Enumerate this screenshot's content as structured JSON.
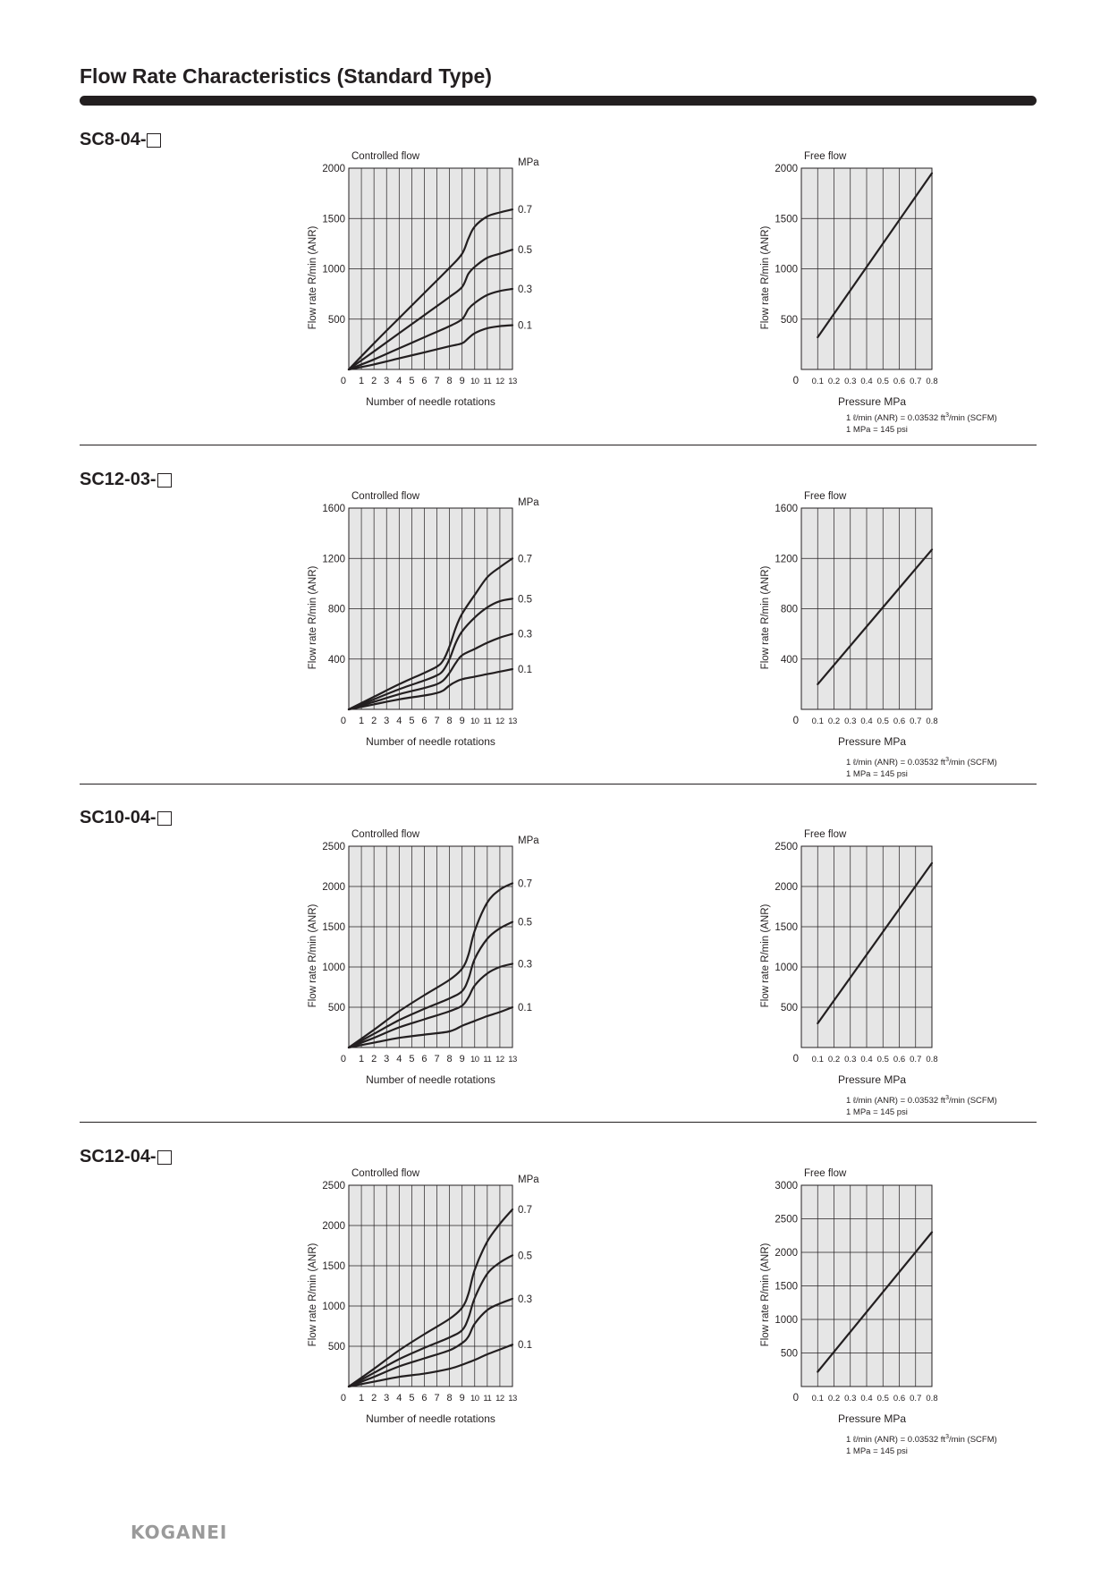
{
  "page_title": "Flow Rate Characteristics (Standard Type)",
  "logo": "KOGANEI",
  "notes": {
    "line1_pre": "1 ℓ/min (ANR) = 0.03532 ft",
    "line1_sup": "3",
    "line1_post": "/min (SCFM)",
    "line2": "1 MPa = 145 psi"
  },
  "sections": [
    {
      "model": "SC8-04-",
      "chart_data": [
        {
          "type": "line",
          "title": "Controlled flow",
          "xlabel": "Number of needle rotations",
          "ylabel": "Flow rate R/min (ANR)",
          "series_unit": "MPa",
          "xlim": [
            0,
            13
          ],
          "ylim": [
            0,
            2000
          ],
          "yticks": [
            500,
            1000,
            1500,
            2000
          ],
          "xticks": [
            0,
            1,
            2,
            3,
            4,
            5,
            6,
            7,
            8,
            9,
            10,
            11,
            12,
            13
          ],
          "grid": true,
          "series": [
            {
              "name": "0.7",
              "x": [
                0,
                2,
                4,
                6,
                8,
                9,
                9.5,
                10,
                11,
                12,
                13
              ],
              "y": [
                0,
                260,
                510,
                760,
                1010,
                1150,
                1300,
                1420,
                1520,
                1560,
                1590
              ]
            },
            {
              "name": "0.5",
              "x": [
                0,
                2,
                4,
                6,
                8,
                9,
                9.5,
                10,
                11,
                12,
                13
              ],
              "y": [
                0,
                180,
                360,
                540,
                720,
                820,
                950,
                1020,
                1110,
                1150,
                1190
              ]
            },
            {
              "name": "0.3",
              "x": [
                0,
                2,
                4,
                6,
                8,
                9,
                9.5,
                10,
                11,
                12,
                13
              ],
              "y": [
                0,
                100,
                210,
                320,
                430,
                500,
                600,
                660,
                740,
                780,
                800
              ]
            },
            {
              "name": "0.1",
              "x": [
                0,
                2,
                4,
                6,
                8,
                9,
                9.5,
                10,
                11,
                12,
                13
              ],
              "y": [
                0,
                50,
                110,
                170,
                230,
                260,
                310,
                360,
                410,
                430,
                440
              ]
            }
          ]
        },
        {
          "type": "line",
          "title": "Free flow",
          "xlabel": "Pressure MPa",
          "ylabel": "Flow rate R/min (ANR)",
          "xlim": [
            0,
            0.8
          ],
          "ylim": [
            0,
            2000
          ],
          "yticks": [
            500,
            1000,
            1500,
            2000
          ],
          "xticks": [
            "0",
            "0.1",
            "0.2",
            "0.3",
            "0.4",
            "0.5",
            "0.6",
            "0.7",
            "0.8"
          ],
          "grid": true,
          "series": [
            {
              "x": [
                0.1,
                0.8
              ],
              "y": [
                320,
                1950
              ]
            }
          ]
        }
      ]
    },
    {
      "model": "SC12-03-",
      "chart_data": [
        {
          "type": "line",
          "title": "Controlled flow",
          "xlabel": "Number of needle rotations",
          "ylabel": "Flow rate R/min (ANR)",
          "series_unit": "MPa",
          "xlim": [
            0,
            13
          ],
          "ylim": [
            0,
            1600
          ],
          "yticks": [
            400,
            800,
            1200,
            1600
          ],
          "xticks": [
            0,
            1,
            2,
            3,
            4,
            5,
            6,
            7,
            8,
            9,
            10,
            11,
            12,
            13
          ],
          "grid": true,
          "series": [
            {
              "name": "0.7",
              "x": [
                0,
                2,
                4,
                6,
                7,
                7.5,
                8,
                8.5,
                9,
                10,
                11,
                12,
                13
              ],
              "y": [
                0,
                100,
                200,
                290,
                340,
                390,
                500,
                650,
                760,
                910,
                1050,
                1130,
                1200
              ]
            },
            {
              "name": "0.5",
              "x": [
                0,
                2,
                4,
                6,
                7,
                7.5,
                8,
                8.5,
                9,
                10,
                11,
                12,
                13
              ],
              "y": [
                0,
                80,
                160,
                230,
                270,
                310,
                400,
                530,
                620,
                730,
                810,
                860,
                880
              ]
            },
            {
              "name": "0.3",
              "x": [
                0,
                2,
                4,
                6,
                7,
                7.5,
                8,
                8.5,
                9,
                10,
                11,
                12,
                13
              ],
              "y": [
                0,
                60,
                120,
                170,
                200,
                230,
                290,
                370,
                430,
                480,
                530,
                570,
                600
              ]
            },
            {
              "name": "0.1",
              "x": [
                0,
                2,
                4,
                6,
                7,
                7.5,
                8,
                8.5,
                9,
                10,
                11,
                12,
                13
              ],
              "y": [
                0,
                40,
                80,
                110,
                130,
                150,
                190,
                220,
                240,
                260,
                280,
                300,
                320
              ]
            }
          ]
        },
        {
          "type": "line",
          "title": "Free flow",
          "xlabel": "Pressure MPa",
          "ylabel": "Flow rate R/min (ANR)",
          "xlim": [
            0,
            0.8
          ],
          "ylim": [
            0,
            1600
          ],
          "yticks": [
            400,
            800,
            1200,
            1600
          ],
          "xticks": [
            "0",
            "0.1",
            "0.2",
            "0.3",
            "0.4",
            "0.5",
            "0.6",
            "0.7",
            "0.8"
          ],
          "grid": true,
          "series": [
            {
              "x": [
                0.1,
                0.8
              ],
              "y": [
                200,
                1270
              ]
            }
          ]
        }
      ]
    },
    {
      "model": "SC10-04-",
      "chart_data": [
        {
          "type": "line",
          "title": "Controlled flow",
          "xlabel": "Number of needle rotations",
          "ylabel": "Flow rate R/min (ANR)",
          "series_unit": "MPa",
          "xlim": [
            0,
            13
          ],
          "ylim": [
            0,
            2500
          ],
          "yticks": [
            500,
            1000,
            1500,
            2000,
            2500
          ],
          "xticks": [
            0,
            1,
            2,
            3,
            4,
            5,
            6,
            7,
            8,
            9,
            10,
            11,
            12,
            13
          ],
          "grid": true,
          "series": [
            {
              "name": "0.7",
              "x": [
                0,
                2,
                4,
                6,
                8,
                9,
                9.5,
                10,
                11,
                12,
                13
              ],
              "y": [
                0,
                220,
                450,
                650,
                840,
                980,
                1150,
                1450,
                1800,
                1960,
                2040
              ]
            },
            {
              "name": "0.5",
              "x": [
                0,
                2,
                4,
                6,
                8,
                9,
                9.5,
                10,
                11,
                12,
                13
              ],
              "y": [
                0,
                170,
                340,
                480,
                610,
                700,
                850,
                1100,
                1350,
                1480,
                1560
              ]
            },
            {
              "name": "0.3",
              "x": [
                0,
                2,
                4,
                6,
                8,
                9,
                9.5,
                10,
                11,
                12,
                13
              ],
              "y": [
                0,
                120,
                250,
                350,
                450,
                520,
                620,
                770,
                920,
                1000,
                1040
              ]
            },
            {
              "name": "0.1",
              "x": [
                0,
                2,
                4,
                6,
                8,
                9,
                9.5,
                10,
                11,
                12,
                13
              ],
              "y": [
                0,
                60,
                120,
                160,
                200,
                270,
                300,
                330,
                390,
                440,
                500
              ]
            }
          ]
        },
        {
          "type": "line",
          "title": "Free flow",
          "xlabel": "Pressure MPa",
          "ylabel": "Flow rate R/min (ANR)",
          "xlim": [
            0,
            0.8
          ],
          "ylim": [
            0,
            2500
          ],
          "yticks": [
            500,
            1000,
            1500,
            2000,
            2500
          ],
          "xticks": [
            "0",
            "0.1",
            "0.2",
            "0.3",
            "0.4",
            "0.5",
            "0.6",
            "0.7",
            "0.8"
          ],
          "grid": true,
          "series": [
            {
              "x": [
                0.1,
                0.8
              ],
              "y": [
                300,
                2290
              ]
            }
          ]
        }
      ]
    },
    {
      "model": "SC12-04-",
      "chart_data": [
        {
          "type": "line",
          "title": "Controlled flow",
          "xlabel": "Number of needle rotations",
          "ylabel": "Flow rate R/min (ANR)",
          "series_unit": "MPa",
          "xlim": [
            0,
            13
          ],
          "ylim": [
            0,
            2500
          ],
          "yticks": [
            500,
            1000,
            1500,
            2000,
            2500
          ],
          "xticks": [
            0,
            1,
            2,
            3,
            4,
            5,
            6,
            7,
            8,
            9,
            10,
            11,
            12,
            13
          ],
          "grid": true,
          "series": [
            {
              "name": "0.7",
              "x": [
                0,
                2,
                4,
                6,
                8,
                9,
                9.5,
                10,
                11,
                12,
                13
              ],
              "y": [
                0,
                220,
                450,
                650,
                840,
                980,
                1150,
                1450,
                1800,
                2020,
                2200
              ]
            },
            {
              "name": "0.5",
              "x": [
                0,
                2,
                4,
                6,
                8,
                9,
                9.5,
                10,
                11,
                12,
                13
              ],
              "y": [
                0,
                170,
                340,
                480,
                610,
                700,
                850,
                1100,
                1400,
                1540,
                1630
              ]
            },
            {
              "name": "0.3",
              "x": [
                0,
                2,
                4,
                6,
                8,
                9,
                9.5,
                10,
                11,
                12,
                13
              ],
              "y": [
                0,
                120,
                250,
                350,
                450,
                540,
                620,
                780,
                950,
                1030,
                1090
              ]
            },
            {
              "name": "0.1",
              "x": [
                0,
                2,
                4,
                6,
                8,
                9,
                9.5,
                10,
                11,
                12,
                13
              ],
              "y": [
                0,
                60,
                120,
                160,
                220,
                270,
                300,
                330,
                400,
                460,
                520
              ]
            }
          ]
        },
        {
          "type": "line",
          "title": "Free flow",
          "xlabel": "Pressure MPa",
          "ylabel": "Flow rate R/min (ANR)",
          "xlim": [
            0,
            0.8
          ],
          "ylim": [
            0,
            3000
          ],
          "yticks": [
            500,
            1000,
            1500,
            2000,
            2500,
            3000
          ],
          "xticks": [
            "0",
            "0.1",
            "0.2",
            "0.3",
            "0.4",
            "0.5",
            "0.6",
            "0.7",
            "0.8"
          ],
          "grid": true,
          "series": [
            {
              "x": [
                0.1,
                0.8
              ],
              "y": [
                220,
                2300
              ]
            }
          ]
        }
      ]
    }
  ]
}
